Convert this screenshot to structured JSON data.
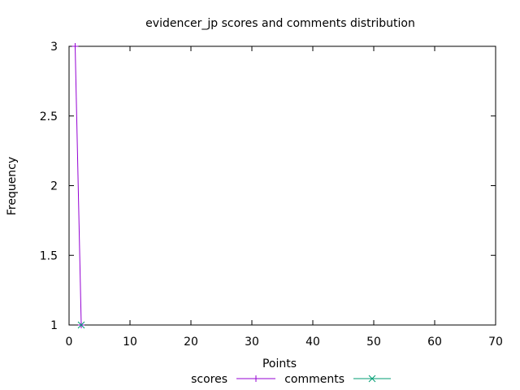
{
  "chart_data": {
    "type": "line",
    "title": "evidencer_jp scores and comments distribution",
    "xlabel": "Points",
    "ylabel": "Frequency",
    "xlim": [
      0,
      70
    ],
    "ylim": [
      1,
      3
    ],
    "xticks": [
      0,
      10,
      20,
      30,
      40,
      50,
      60,
      70
    ],
    "xtick_labels": [
      "0",
      "10",
      "20",
      "30",
      "40",
      "50",
      "60",
      "70"
    ],
    "yticks": [
      1,
      1.5,
      2,
      2.5,
      3
    ],
    "ytick_labels": [
      "1",
      "1.5",
      "2",
      "2.5",
      "3"
    ],
    "grid": false,
    "legend": "bottom",
    "series": [
      {
        "name": "scores",
        "color": "#9400d3",
        "marker": "plus",
        "points": [
          [
            1,
            3
          ],
          [
            2,
            1
          ]
        ]
      },
      {
        "name": "comments",
        "color": "#009e73",
        "marker": "cross",
        "points": [
          [
            2,
            1
          ]
        ]
      }
    ]
  }
}
